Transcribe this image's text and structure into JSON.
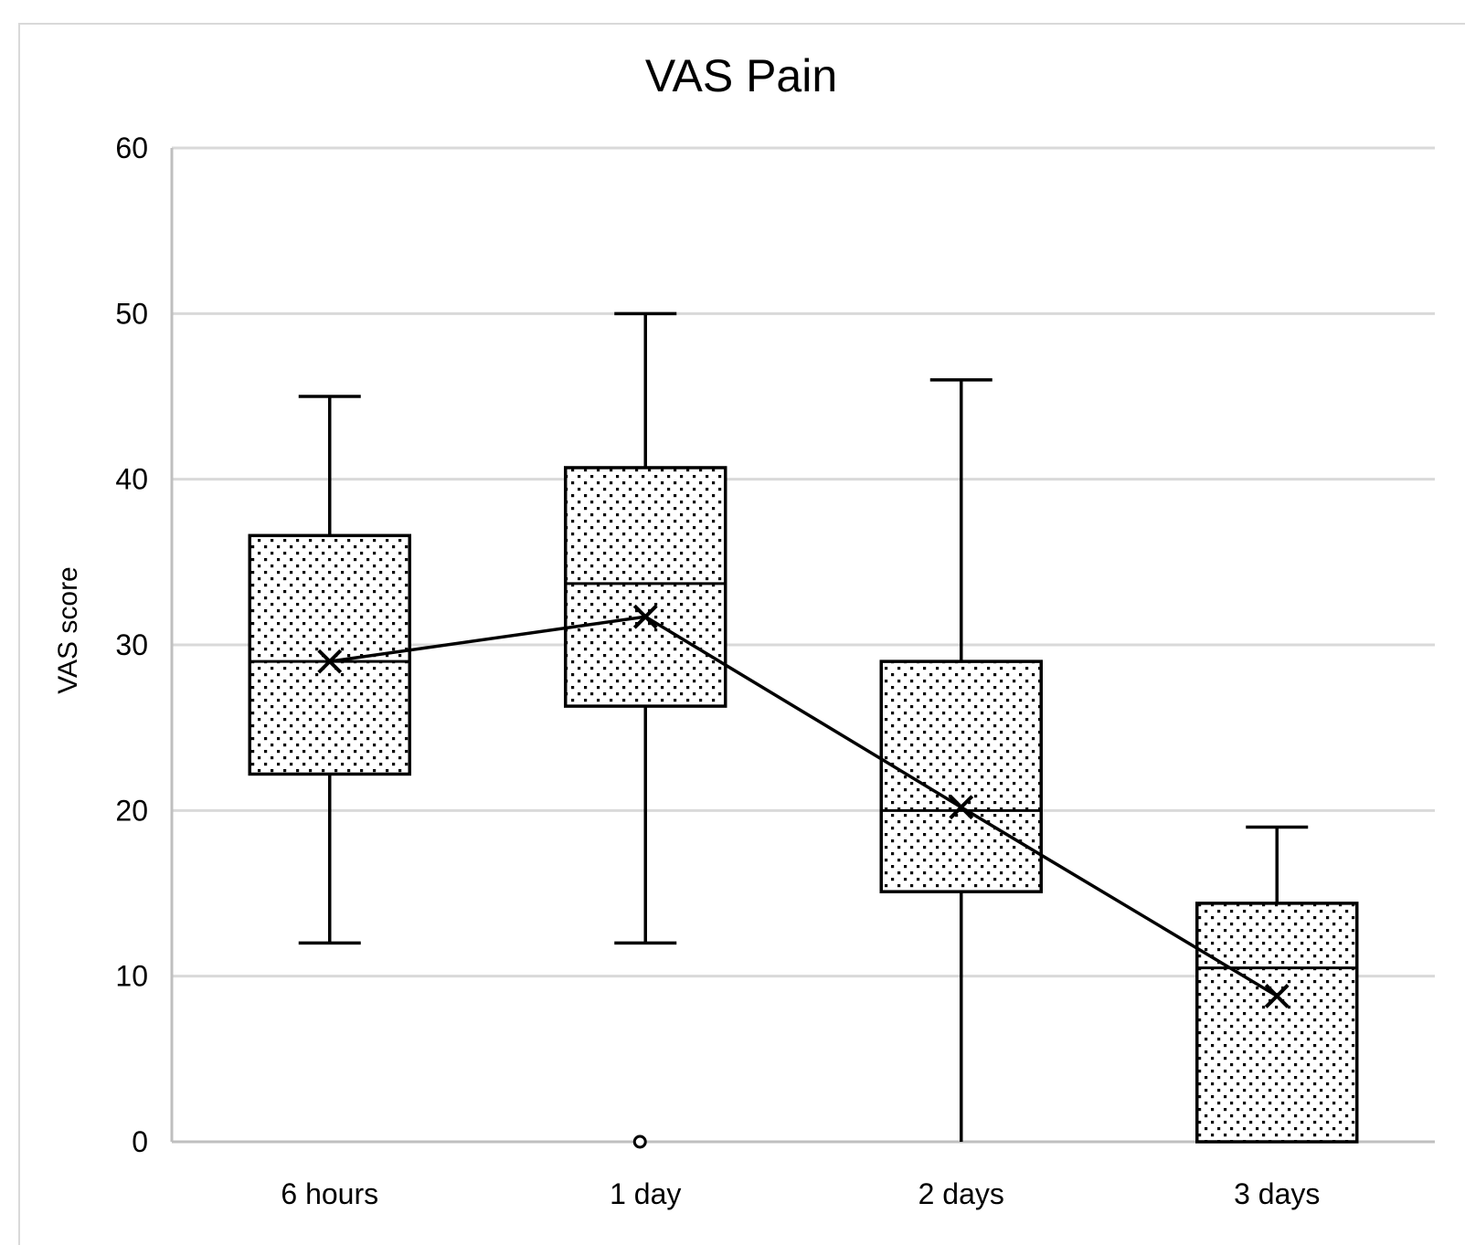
{
  "chart_data": {
    "type": "boxplot",
    "title": "VAS Pain",
    "xlabel": "",
    "ylabel": "VAS score",
    "ylim": [
      0,
      60
    ],
    "yticks": [
      0,
      10,
      20,
      30,
      40,
      50,
      60
    ],
    "grid": true,
    "categories": [
      "6 hours",
      "1 day",
      "2 days",
      "3 days"
    ],
    "series": [
      {
        "name": "6 hours",
        "min": 12,
        "q1": 22.2,
        "median": 29,
        "q3": 36.6,
        "max": 45,
        "mean": 29,
        "outliers": []
      },
      {
        "name": "1 day",
        "min": 12,
        "q1": 26.3,
        "median": 33.7,
        "q3": 40.7,
        "max": 50,
        "mean": 31.7,
        "outliers": [
          0
        ]
      },
      {
        "name": "2 days",
        "min": 0,
        "q1": 15.1,
        "median": 20,
        "q3": 29,
        "max": 46,
        "mean": 20.2,
        "outliers": []
      },
      {
        "name": "3 days",
        "min": 0,
        "q1": 0,
        "median": 10.5,
        "q3": 14.4,
        "max": 19,
        "mean": 8.8,
        "outliers": []
      }
    ],
    "mean_line": true
  }
}
